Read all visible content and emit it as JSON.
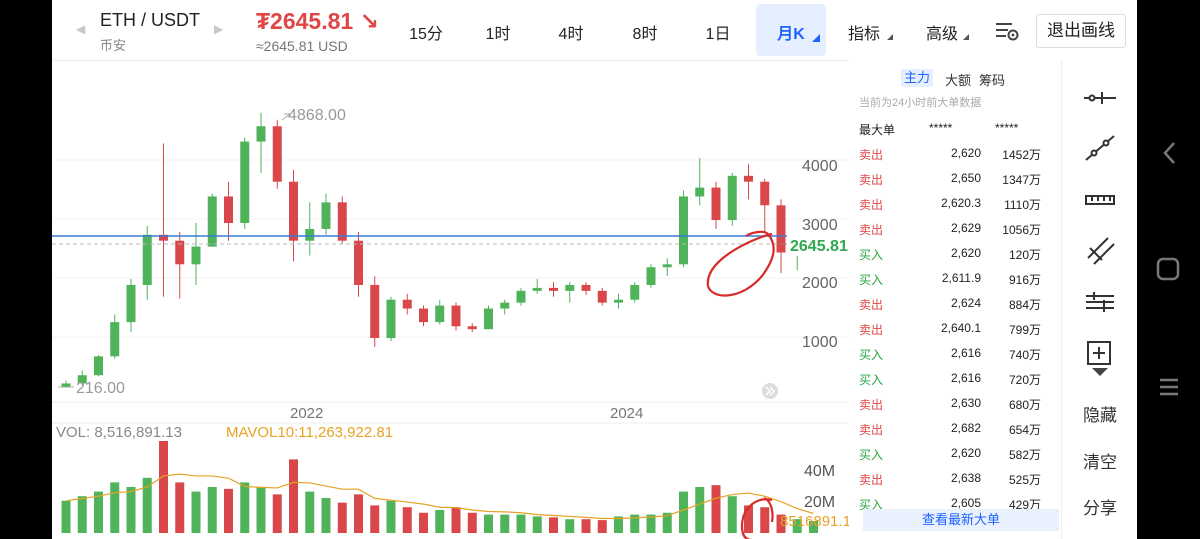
{
  "header": {
    "pair": "ETH / USDT",
    "exchange": "币安",
    "price": "₮2645.81 ↘",
    "price_usd": "≈2645.81 USD",
    "price_color": "#e04646",
    "accent": "#1e63ff"
  },
  "tabs": [
    {
      "label": "15分",
      "active": false
    },
    {
      "label": "1时",
      "active": false
    },
    {
      "label": "4时",
      "active": false
    },
    {
      "label": "8时",
      "active": false
    },
    {
      "label": "1日",
      "active": false
    },
    {
      "label": "月K",
      "active": true
    },
    {
      "label": "指标",
      "active": false
    },
    {
      "label": "高级",
      "active": false
    }
  ],
  "toolbar_top": {
    "settings_icon": "chart-settings-icon",
    "exit_label": "退出画线"
  },
  "chart": {
    "max_label": "4868.00",
    "min_label": "216.00",
    "current_label": "2645.81",
    "y_ticks": [
      "4000",
      "3000",
      "2000",
      "1000"
    ],
    "x_ticks": [
      "2022",
      "2024"
    ],
    "vol_label": "VOL: 8,516,891.13",
    "mavol_label": "MAVOL10:11,263,922.81",
    "vol_ticks": [
      "40M",
      "20M"
    ],
    "vol_current": "8516891.13",
    "up_color": "#4fb35a",
    "down_color": "#d9474a",
    "line_color": "#3a7bd5"
  },
  "chart_data": {
    "type": "candlestick",
    "interval": "月K",
    "y_ticks": [
      1000,
      2000,
      3000,
      4000
    ],
    "current": 2645.81,
    "high_label": 4868,
    "low_label": 216,
    "volume_ticks_M": [
      20,
      40
    ],
    "mavol10": 11263922.81,
    "volume_current": 8516891.13
  },
  "orderbook": {
    "tabs": [
      "主力",
      "大额",
      "筹码"
    ],
    "subtitle": "当前为24小时前大单数据",
    "head": [
      "最大单",
      "*****",
      "*****"
    ],
    "rows": [
      {
        "side": "卖出",
        "price": "2,620",
        "amount": "1452万"
      },
      {
        "side": "卖出",
        "price": "2,650",
        "amount": "1347万"
      },
      {
        "side": "卖出",
        "price": "2,620.3",
        "amount": "1110万"
      },
      {
        "side": "卖出",
        "price": "2,629",
        "amount": "1056万"
      },
      {
        "side": "买入",
        "price": "2,620",
        "amount": "120万"
      },
      {
        "side": "买入",
        "price": "2,611.9",
        "amount": "916万"
      },
      {
        "side": "卖出",
        "price": "2,624",
        "amount": "884万"
      },
      {
        "side": "卖出",
        "price": "2,640.1",
        "amount": "799万"
      },
      {
        "side": "买入",
        "price": "2,616",
        "amount": "740万"
      },
      {
        "side": "买入",
        "price": "2,616",
        "amount": "720万"
      },
      {
        "side": "卖出",
        "price": "2,630",
        "amount": "680万"
      },
      {
        "side": "卖出",
        "price": "2,682",
        "amount": "654万"
      },
      {
        "side": "买入",
        "price": "2,620",
        "amount": "582万"
      },
      {
        "side": "卖出",
        "price": "2,638",
        "amount": "525万"
      },
      {
        "side": "买入",
        "price": "2,605",
        "amount": "429万"
      }
    ],
    "latest_label": "查看最新大单"
  },
  "drawing_tools": {
    "icons": [
      "horizontal-ray-icon",
      "trend-line-icon",
      "ruler-icon",
      "parallel-lines-icon",
      "fib-levels-icon",
      "add-drawing-icon"
    ],
    "hide": "隐藏",
    "clear": "清空",
    "share": "分享"
  }
}
